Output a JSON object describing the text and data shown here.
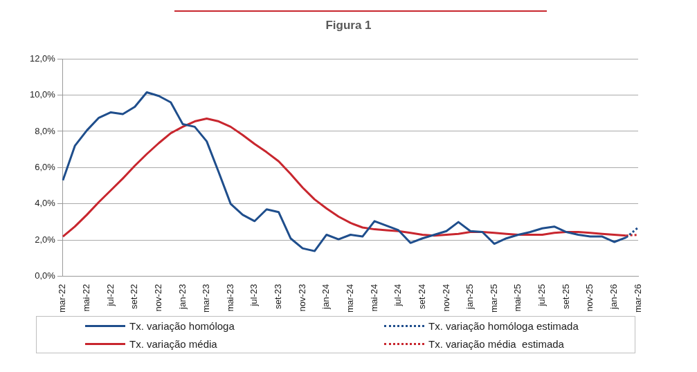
{
  "chart_data": {
    "type": "line",
    "title": "Figura 1",
    "categories": [
      "mar-22",
      null,
      "mai-22",
      null,
      "jul-22",
      null,
      "set-22",
      null,
      "nov-22",
      null,
      "jan-23",
      null,
      "mar-23",
      null,
      "mai-23",
      null,
      "jul-23",
      null,
      "set-23",
      null,
      "nov-23",
      null,
      "jan-24",
      null,
      "mar-24",
      null,
      "mai-24",
      null,
      "jul-24",
      null,
      "set-24",
      null,
      "nov-24",
      null,
      "jan-25",
      null,
      "mar-25",
      null,
      "mai-25",
      null,
      "jul-25",
      null,
      "set-25",
      null,
      "nov-25",
      null,
      "jan-26",
      null,
      "mar-26"
    ],
    "series": [
      {
        "name": "Tx. variação homóloga",
        "color": "#1f4e8c",
        "line_style": "solid",
        "values": [
          5.3,
          7.2,
          8.05,
          8.75,
          9.05,
          8.95,
          9.35,
          10.15,
          9.95,
          9.6,
          8.4,
          8.25,
          7.45,
          5.75,
          4.0,
          3.4,
          3.05,
          3.7,
          3.55,
          2.1,
          1.55,
          1.4,
          2.3,
          2.05,
          2.3,
          2.2,
          3.05,
          2.8,
          2.55,
          1.85,
          2.1,
          2.3,
          2.5,
          3.0,
          2.5,
          2.45,
          1.8,
          2.1,
          2.3,
          2.45,
          2.65,
          2.75,
          2.45,
          2.3,
          2.2,
          2.2,
          1.9,
          2.15,
          null
        ]
      },
      {
        "name": "Tx. variação média",
        "color": "#c8262e",
        "line_style": "solid",
        "values": [
          2.2,
          2.75,
          3.4,
          4.1,
          4.75,
          5.4,
          6.1,
          6.75,
          7.35,
          7.9,
          8.25,
          8.55,
          8.7,
          8.55,
          8.25,
          7.8,
          7.3,
          6.85,
          6.35,
          5.65,
          4.9,
          4.25,
          3.75,
          3.3,
          2.95,
          2.7,
          2.6,
          2.55,
          2.5,
          2.4,
          2.3,
          2.25,
          2.3,
          2.35,
          2.45,
          2.45,
          2.4,
          2.35,
          2.3,
          2.3,
          2.3,
          2.4,
          2.45,
          2.45,
          2.4,
          2.35,
          2.3,
          2.25,
          null
        ]
      },
      {
        "name": "Tx. variação homóloga estimada",
        "color": "#1f4e8c",
        "line_style": "dotted",
        "values": [
          null,
          null,
          null,
          null,
          null,
          null,
          null,
          null,
          null,
          null,
          null,
          null,
          null,
          null,
          null,
          null,
          null,
          null,
          null,
          null,
          null,
          null,
          null,
          null,
          null,
          null,
          null,
          null,
          null,
          null,
          null,
          null,
          null,
          null,
          null,
          null,
          null,
          null,
          null,
          null,
          null,
          null,
          null,
          null,
          null,
          null,
          null,
          2.15,
          2.7
        ]
      },
      {
        "name": "Tx. variação média  estimada",
        "color": "#c8262e",
        "line_style": "dotted",
        "values": [
          null,
          null,
          null,
          null,
          null,
          null,
          null,
          null,
          null,
          null,
          null,
          null,
          null,
          null,
          null,
          null,
          null,
          null,
          null,
          null,
          null,
          null,
          null,
          null,
          null,
          null,
          null,
          null,
          null,
          null,
          null,
          null,
          null,
          null,
          null,
          null,
          null,
          null,
          null,
          null,
          null,
          null,
          null,
          null,
          null,
          null,
          null,
          2.25,
          2.3
        ]
      }
    ],
    "ylim": [
      0,
      12
    ],
    "yticks": [
      {
        "value": 0,
        "label": "0,0%"
      },
      {
        "value": 2,
        "label": "2,0%"
      },
      {
        "value": 4,
        "label": "4,0%"
      },
      {
        "value": 6,
        "label": "6,0%"
      },
      {
        "value": 8,
        "label": "8,0%"
      },
      {
        "value": 10,
        "label": "10,0%"
      },
      {
        "value": 12,
        "label": "12,0%"
      }
    ],
    "grid": "y",
    "legend": "bottom",
    "marker": "none"
  }
}
